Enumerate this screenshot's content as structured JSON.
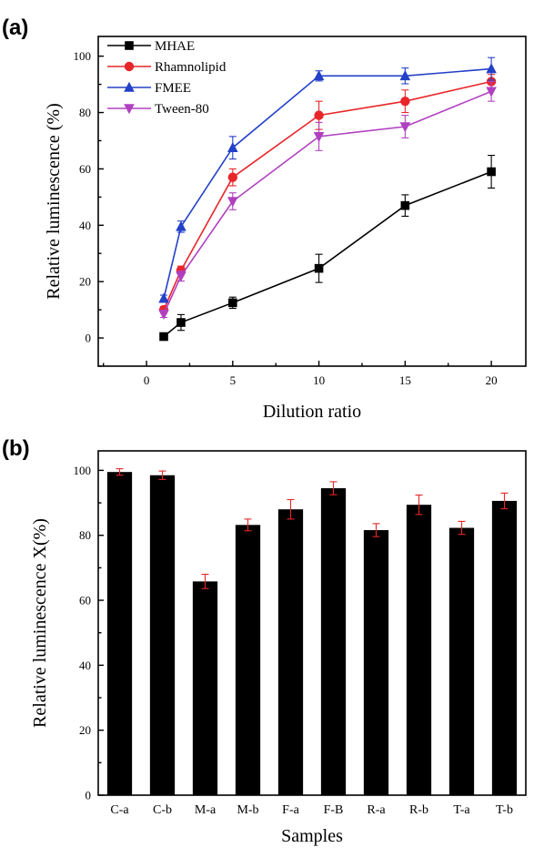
{
  "chart_data": [
    {
      "panel_label": "(a)",
      "type": "line",
      "xlabel": "Dilution ratio",
      "ylabel": "Relative luminescence (%)",
      "xlim": [
        -2.8,
        22
      ],
      "ylim": [
        -10,
        107
      ],
      "xticks": [
        0,
        5,
        10,
        15,
        20
      ],
      "yticks": [
        0,
        20,
        40,
        60,
        80,
        100
      ],
      "x": [
        1,
        2,
        5,
        10,
        15,
        20
      ],
      "legend_position": "top-left",
      "series": [
        {
          "name": "MHAE",
          "color": "#000000",
          "marker": "square",
          "values": [
            0.5,
            5.5,
            12.5,
            24.7,
            47,
            59
          ],
          "errors": [
            0.5,
            2.8,
            2.0,
            5.0,
            3.8,
            5.8
          ]
        },
        {
          "name": "Rhamnolipid",
          "color": "#e8262a",
          "marker": "circle",
          "values": [
            10,
            24,
            57,
            79,
            84,
            91
          ],
          "errors": [
            1.2,
            1.5,
            3.0,
            5.0,
            4.0,
            2.5
          ]
        },
        {
          "name": "FMEE",
          "color": "#2340c8",
          "marker": "triangle-up",
          "values": [
            14,
            39.5,
            67.5,
            93,
            93,
            95.5
          ],
          "errors": [
            1.2,
            2.0,
            4.0,
            1.8,
            2.8,
            4.0
          ]
        },
        {
          "name": "Tween-80",
          "color": "#b040c0",
          "marker": "triangle-down",
          "values": [
            8.5,
            22,
            48.5,
            71.5,
            75,
            87.5
          ],
          "errors": [
            1.2,
            1.8,
            3.0,
            5.0,
            4.0,
            3.5
          ]
        }
      ]
    },
    {
      "panel_label": "(b)",
      "type": "bar",
      "xlabel": "Samples",
      "ylabel": "Relative luminescence X(%)",
      "ylim": [
        0,
        106
      ],
      "yticks": [
        0,
        20,
        40,
        60,
        80,
        100
      ],
      "categories": [
        "C-a",
        "C-b",
        "M-a",
        "M-b",
        "F-a",
        "F-B",
        "R-a",
        "R-b",
        "T-a",
        "T-b"
      ],
      "values": [
        99.5,
        98.5,
        65.8,
        83.2,
        88,
        94.5,
        81.6,
        89.4,
        82.3,
        90.6
      ],
      "errors": [
        1.0,
        1.3,
        2.2,
        1.8,
        3.0,
        2.0,
        2.0,
        3.0,
        2.0,
        2.4
      ],
      "bar_color": "#000000",
      "error_color": "#e8262a"
    }
  ]
}
